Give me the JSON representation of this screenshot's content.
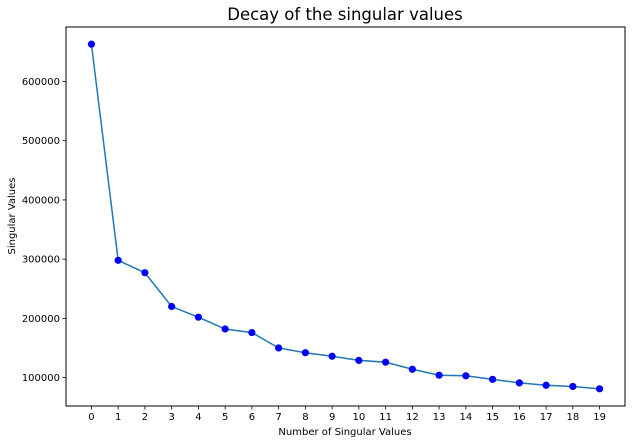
{
  "chart_data": {
    "type": "line",
    "title": "Decay of the singular values",
    "xlabel": "Number of Singular Values",
    "ylabel": "Singular Values",
    "x": [
      0,
      1,
      2,
      3,
      4,
      5,
      6,
      7,
      8,
      9,
      10,
      11,
      12,
      13,
      14,
      15,
      16,
      17,
      18,
      19
    ],
    "series": [
      {
        "values": [
          663000,
          298000,
          277000,
          220000,
          202000,
          182000,
          176000,
          150000,
          142000,
          136000,
          129000,
          126000,
          114000,
          104000,
          103000,
          97000,
          91000,
          87000,
          85000,
          81000
        ]
      }
    ],
    "xlim": [
      -0.95,
      19.95
    ],
    "ylim": [
      52000,
      692000
    ],
    "xticks": [
      0,
      1,
      2,
      3,
      4,
      5,
      6,
      7,
      8,
      9,
      10,
      11,
      12,
      13,
      14,
      15,
      16,
      17,
      18,
      19
    ],
    "yticks": [
      100000,
      200000,
      300000,
      400000,
      500000,
      600000
    ],
    "grid": false,
    "line_color": "#1f77b4",
    "marker_color": "#0000ff"
  }
}
